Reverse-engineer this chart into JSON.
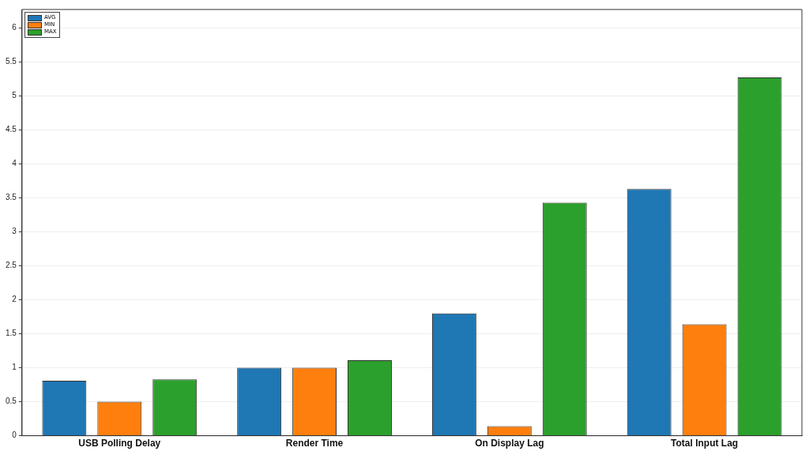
{
  "chart_data": {
    "type": "bar",
    "categories": [
      "USB Polling Delay",
      "Render Time",
      "On Display Lag",
      "Total Input Lag"
    ],
    "series": [
      {
        "name": "AVG",
        "color": "#1f77b4",
        "values": [
          0.81,
          1.0,
          1.8,
          3.63
        ]
      },
      {
        "name": "MIN",
        "color": "#ff7f0e",
        "values": [
          0.5,
          1.0,
          0.14,
          1.64
        ]
      },
      {
        "name": "MAX",
        "color": "#2ca02c",
        "values": [
          0.83,
          1.11,
          3.43,
          5.27
        ]
      }
    ],
    "ylim": [
      0,
      6.27
    ],
    "yticks": [
      0,
      0.5,
      1,
      1.5,
      2,
      2.5,
      3,
      3.5,
      4,
      4.5,
      5,
      5.5,
      6
    ],
    "grid": "y",
    "legend": "top left"
  }
}
